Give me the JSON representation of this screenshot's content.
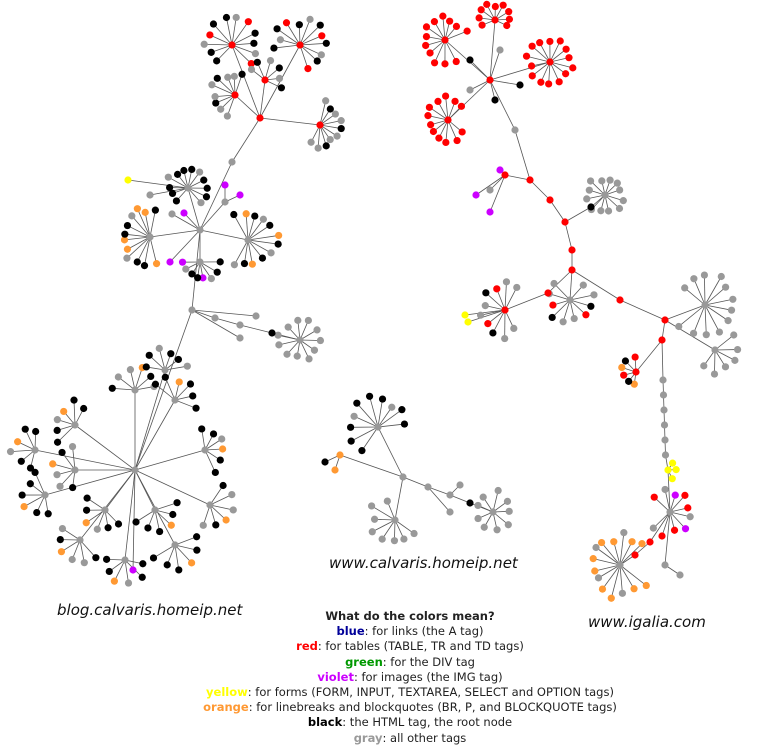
{
  "sites": [
    {
      "label": "blog.calvaris.homeip.net"
    },
    {
      "label": "www.calvaris.homeip.net"
    },
    {
      "label": "www.igalia.com"
    }
  ],
  "legend": {
    "title": "What do the colors mean?",
    "items": [
      {
        "name": "blue",
        "text": ": for links (the A tag)",
        "color": "#000099"
      },
      {
        "name": "red",
        "text": ": for tables (TABLE, TR and TD tags)",
        "color": "#ff0000"
      },
      {
        "name": "green",
        "text": ": for the DIV tag",
        "color": "#009900"
      },
      {
        "name": "violet",
        "text": ": for images (the IMG tag)",
        "color": "#cc00ff"
      },
      {
        "name": "yellow",
        "text": ": for forms (FORM, INPUT, TEXTAREA, SELECT and OPTION tags)",
        "color": "#ffff00"
      },
      {
        "name": "orange",
        "text": ": for linebreaks and blockquotes (BR, P, and BLOCKQUOTE tags)",
        "color": "#ff9933"
      },
      {
        "name": "black",
        "text": ": the HTML tag, the root node",
        "color": "#000000"
      },
      {
        "name": "gray",
        "text": ": all other tags",
        "color": "#999999"
      }
    ]
  }
}
